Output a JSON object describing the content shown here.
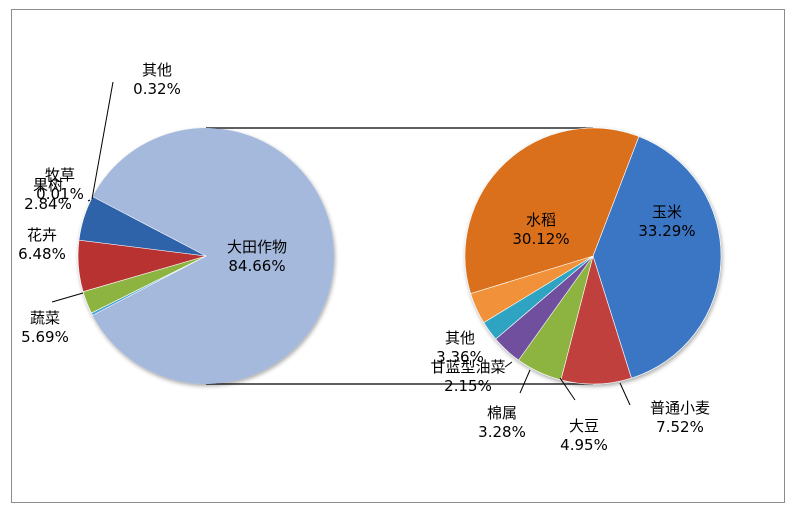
{
  "chart_data": [
    {
      "type": "pie",
      "categories": [
        "大田作物",
        "其他",
        "牧草",
        "果树",
        "花卉",
        "蔬菜"
      ],
      "values": [
        84.66,
        0.32,
        0.01,
        2.84,
        6.48,
        5.69
      ],
      "value_labels": [
        "84.66%",
        "0.32%",
        "0.01%",
        "2.84%",
        "6.48%",
        "5.69%"
      ],
      "colors": [
        "#a5b9dd",
        "#4aa4d8",
        "#7e62a5",
        "#8db33f",
        "#b83230",
        "#2f62a9"
      ]
    },
    {
      "type": "pie",
      "categories": [
        "玉米",
        "普通小麦",
        "大豆",
        "棉属",
        "甘蓝型油菜",
        "其他",
        "水稻"
      ],
      "values": [
        33.29,
        7.52,
        4.95,
        3.28,
        2.15,
        3.36,
        30.12
      ],
      "value_labels": [
        "33.29%",
        "7.52%",
        "4.95%",
        "3.28%",
        "2.15%",
        "3.36%",
        "30.12%"
      ],
      "colors": [
        "#3a76c4",
        "#c0403c",
        "#8db33f",
        "#6f4f9e",
        "#2fa3c2",
        "#f1923a",
        "#db6f1c"
      ]
    }
  ]
}
